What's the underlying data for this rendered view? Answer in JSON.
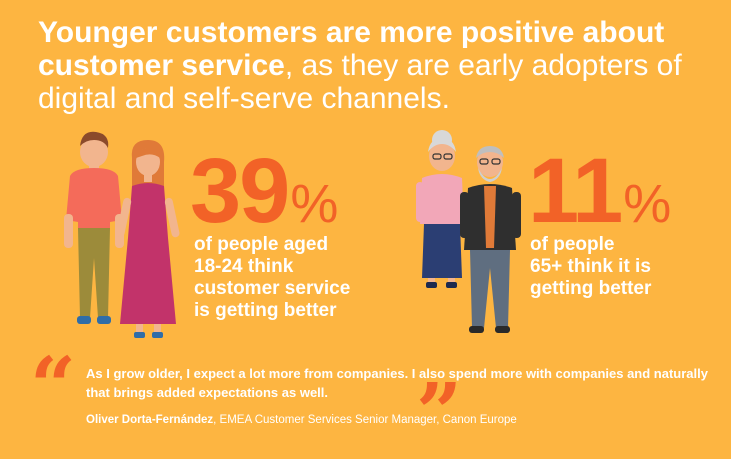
{
  "headline": {
    "bold_part": "Younger customers are more positive about customer service",
    "light_part": ", as they are early adopters of digital and self-serve channels."
  },
  "stats": [
    {
      "number": "39",
      "unit": "%",
      "description_lines": [
        "of people aged",
        "18-24 think",
        "customer service",
        "is getting better"
      ]
    },
    {
      "number": "11",
      "unit": "%",
      "description_lines": [
        "of people",
        "65+ think it is",
        "getting better"
      ]
    }
  ],
  "quote": {
    "open_mark": "“",
    "close_mark": "”",
    "text": "As I grow older, I expect a lot more from companies. I also spend more with companies and naturally that brings added expectations as well.",
    "author_name": "Oliver Dorta-Fernández",
    "author_title": ", EMEA Customer Services Senior Manager, Canon Europe"
  },
  "colors": {
    "background": "#FDB541",
    "accent": "#F26227",
    "text": "#FFFFFF"
  }
}
